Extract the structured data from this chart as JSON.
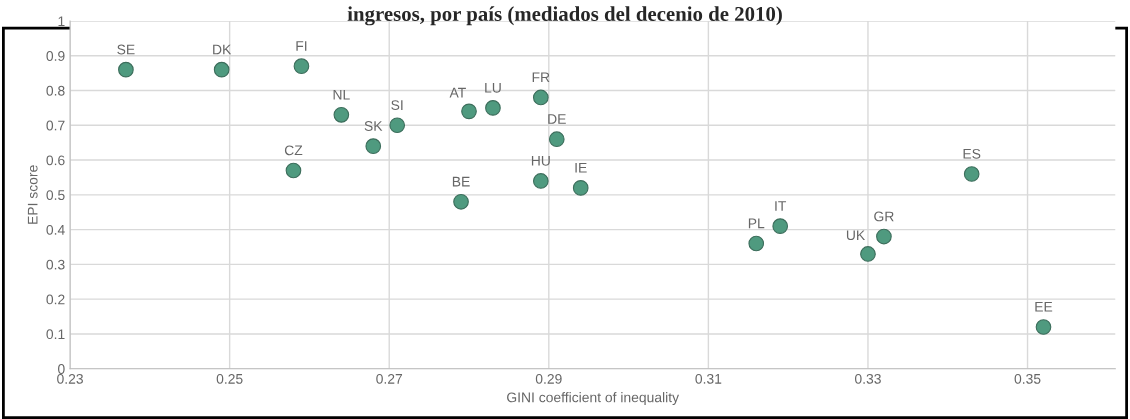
{
  "chart_data": {
    "type": "scatter",
    "title": "ingresos, por país (mediados del decenio de 2010)",
    "xlabel": "GINI coefficient of inequality",
    "ylabel": "EPI score",
    "x": [
      0.237,
      0.249,
      0.259,
      0.264,
      0.258,
      0.268,
      0.271,
      0.279,
      0.28,
      0.283,
      0.289,
      0.289,
      0.291,
      0.294,
      0.316,
      0.319,
      0.33,
      0.332,
      0.343,
      0.352
    ],
    "values": [
      0.86,
      0.86,
      0.87,
      0.73,
      0.57,
      0.64,
      0.7,
      0.48,
      0.74,
      0.75,
      0.78,
      0.54,
      0.66,
      0.52,
      0.36,
      0.41,
      0.33,
      0.38,
      0.56,
      0.12
    ],
    "color": "#4f9a7f",
    "marker": "circle",
    "annotations": [
      {
        "text": "SE",
        "x": 0.237,
        "y": 0.86
      },
      {
        "text": "DK",
        "x": 0.249,
        "y": 0.86
      },
      {
        "text": "FI",
        "x": 0.259,
        "y": 0.87
      },
      {
        "text": "NL",
        "x": 0.264,
        "y": 0.73
      },
      {
        "text": "CZ",
        "x": 0.258,
        "y": 0.57
      },
      {
        "text": "SK",
        "x": 0.268,
        "y": 0.64
      },
      {
        "text": "SI",
        "x": 0.271,
        "y": 0.7
      },
      {
        "text": "BE",
        "x": 0.279,
        "y": 0.48
      },
      {
        "text": "AT",
        "x": 0.28,
        "y": 0.74
      },
      {
        "text": "LU",
        "x": 0.283,
        "y": 0.75
      },
      {
        "text": "FR",
        "x": 0.289,
        "y": 0.78
      },
      {
        "text": "HU",
        "x": 0.289,
        "y": 0.54
      },
      {
        "text": "DE",
        "x": 0.291,
        "y": 0.66
      },
      {
        "text": "IE",
        "x": 0.294,
        "y": 0.52
      },
      {
        "text": "PL",
        "x": 0.316,
        "y": 0.36
      },
      {
        "text": "IT",
        "x": 0.319,
        "y": 0.41
      },
      {
        "text": "UK",
        "x": 0.33,
        "y": 0.33
      },
      {
        "text": "GR",
        "x": 0.332,
        "y": 0.38
      },
      {
        "text": "ES",
        "x": 0.343,
        "y": 0.56
      },
      {
        "text": "EE",
        "x": 0.352,
        "y": 0.12
      }
    ],
    "xlim": [
      0.23,
      0.361
    ],
    "xticks": [
      0.23,
      0.25,
      0.27,
      0.29,
      0.31,
      0.33,
      0.35
    ],
    "ylim": [
      0,
      1
    ],
    "yticks": [
      0,
      0.1,
      0.2,
      0.3,
      0.4,
      0.5,
      0.6,
      0.7,
      0.8,
      0.9,
      1
    ],
    "grid": true
  }
}
